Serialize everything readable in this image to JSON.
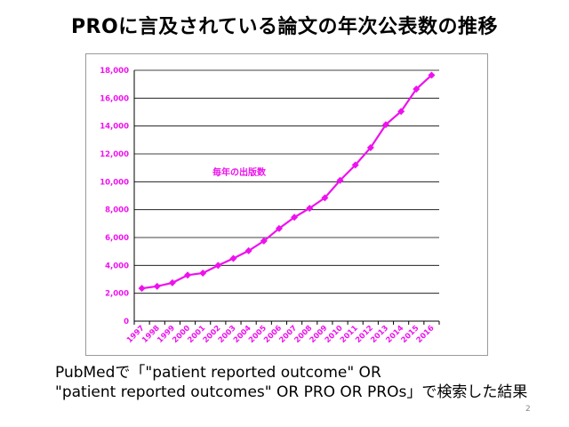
{
  "slide": {
    "title": "PROに言及されている論文の年次公表数の推移",
    "caption_line1": "PubMedで「\"patient reported outcome\" OR",
    "caption_line2": "\"patient reported outcomes\" OR PRO OR PROs」で検索した結果",
    "page_number": "2"
  },
  "chart_data": {
    "type": "line",
    "title": "",
    "xlabel": "",
    "ylabel": "",
    "x": [
      "1997",
      "1998",
      "1999",
      "2000",
      "2001",
      "2002",
      "2003",
      "2004",
      "2005",
      "2006",
      "2007",
      "2008",
      "2009",
      "2010",
      "2011",
      "2012",
      "2013",
      "2014",
      "2015",
      "2016"
    ],
    "series": [
      {
        "name": "毎年の出版数",
        "values": [
          2350,
          2500,
          2750,
          3300,
          3450,
          4000,
          4500,
          5050,
          5750,
          6650,
          7450,
          8100,
          8850,
          10100,
          11200,
          12450,
          14100,
          15050,
          16650,
          17650
        ]
      }
    ],
    "ylim": [
      0,
      18000
    ],
    "yticks": [
      0,
      2000,
      4000,
      6000,
      8000,
      10000,
      12000,
      14000,
      16000,
      18000
    ],
    "ytick_labels": [
      "0",
      "2,000",
      "4,000",
      "6,000",
      "8,000",
      "10,000",
      "12,000",
      "14,000",
      "16,000",
      "18,000"
    ],
    "grid": "horizontal",
    "legend": "inline label near upper middle",
    "colors": {
      "series": "#ee11ee",
      "tick_label": "#ee11ee",
      "grid": "#000000",
      "axis": "#000000"
    }
  }
}
